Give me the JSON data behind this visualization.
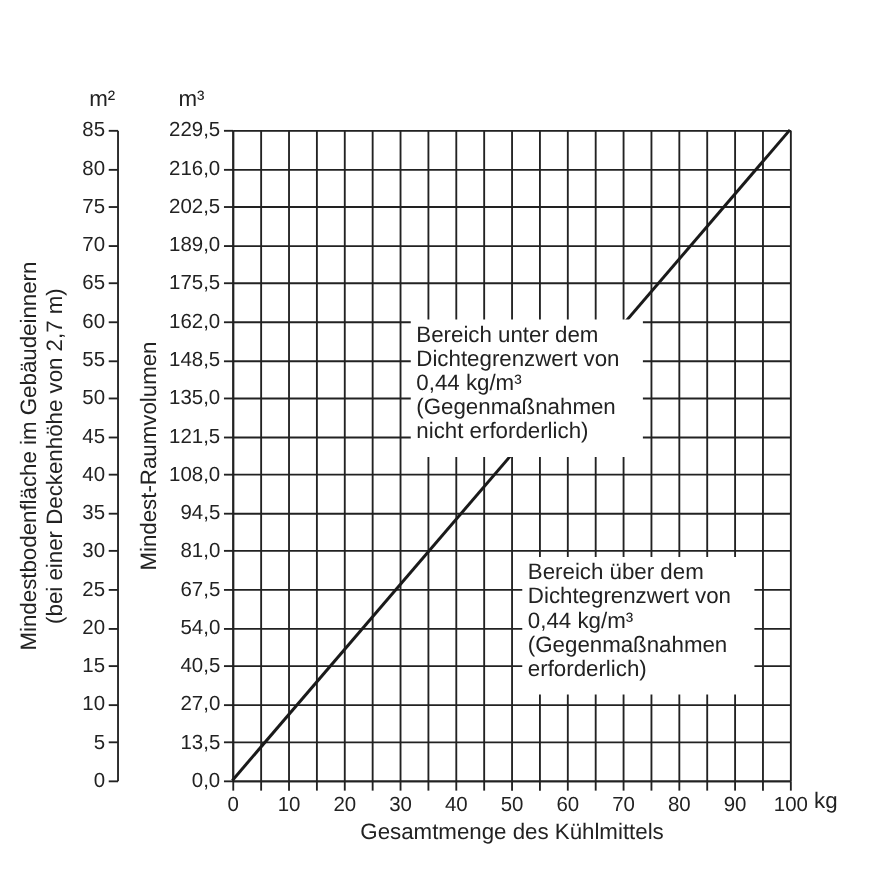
{
  "chart_data": {
    "type": "line",
    "xlabel": "Gesamtmenge des Kühlmittels",
    "ylabel": "Mindestbodenfläche im Gebäudeinnern\n(bei einer Deckenhöhe von 2,7 m)",
    "y2label": "Mindest-Raumvolumen",
    "x": [
      0,
      100
    ],
    "series": [
      {
        "color": "#1a1a1a",
        "values": [
          0,
          229.5
        ],
        "axis": "y2"
      }
    ],
    "xlim": [
      0,
      100
    ],
    "xticks": [
      0,
      {
        "value": 5,
        "label": null
      },
      10,
      {
        "value": 15,
        "label": null
      },
      20,
      {
        "value": 25,
        "label": null
      },
      30,
      {
        "value": 35,
        "label": null
      },
      40,
      {
        "value": 45,
        "label": null
      },
      50,
      {
        "value": 55,
        "label": null
      },
      60,
      {
        "value": 65,
        "label": null
      },
      70,
      {
        "value": 75,
        "label": null
      },
      80,
      {
        "value": 85,
        "label": null
      },
      90,
      {
        "value": 95,
        "label": null
      },
      100
    ],
    "ylim": [
      0,
      85
    ],
    "yticks": [
      0,
      5,
      10,
      15,
      20,
      25,
      30,
      35,
      40,
      45,
      50,
      55,
      60,
      65,
      70,
      75,
      80,
      85
    ],
    "y2lim": [
      0,
      229.5
    ],
    "y2ticks": [
      {
        "value": 0,
        "label": "0,0"
      },
      {
        "value": 13.5,
        "label": "13,5"
      },
      {
        "value": 27,
        "label": "27,0"
      },
      {
        "value": 40.5,
        "label": "40,5"
      },
      {
        "value": 54,
        "label": "54,0"
      },
      {
        "value": 67.5,
        "label": "67,5"
      },
      {
        "value": 81,
        "label": "81,0"
      },
      {
        "value": 94.5,
        "label": "94,5"
      },
      {
        "value": 108,
        "label": "108,0"
      },
      {
        "value": 121.5,
        "label": "121,5"
      },
      {
        "value": 135,
        "label": "135,0"
      },
      {
        "value": 148.5,
        "label": "148,5"
      },
      {
        "value": 162,
        "label": "162,0"
      },
      {
        "value": 175.5,
        "label": "175,5"
      },
      {
        "value": 189,
        "label": "189,0"
      },
      {
        "value": 202.5,
        "label": "202,5"
      },
      {
        "value": 216,
        "label": "216,0"
      },
      {
        "value": 229.5,
        "label": "229,5"
      }
    ],
    "grid": true,
    "marker": "none",
    "line_style": "solid",
    "annotations": [
      "m²",
      "m³",
      "kg",
      "Bereich unter dem\nDichtegrenzwert von\n0,44 kg/m³\n(Gegenmaßnahmen\nnicht erforderlich)",
      "Bereich über dem\nDichtegrenzwert von\n0,44 kg/m³\n(Gegenmaßnahmen\nerforderlich)"
    ]
  }
}
